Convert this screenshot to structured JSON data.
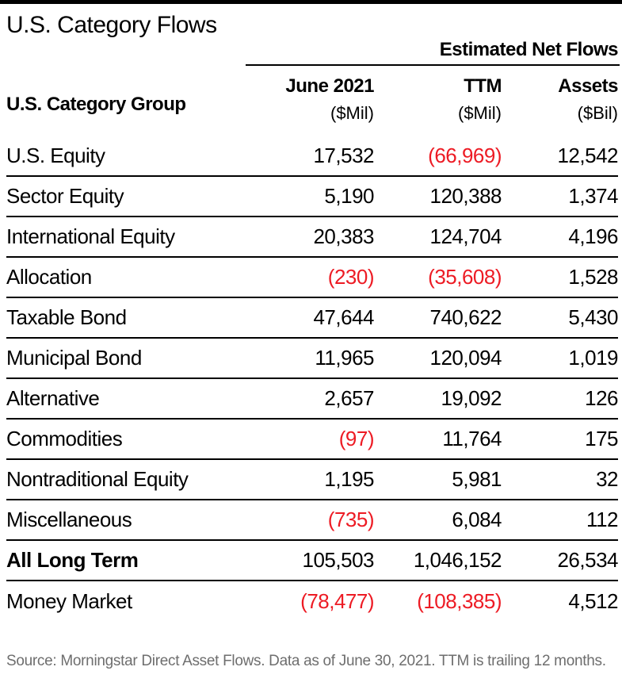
{
  "page": {
    "title": "U.S. Category Flows"
  },
  "table": {
    "group_header": "Estimated Net Flows",
    "columns": {
      "label": "U.S. Category Group",
      "june": {
        "label": "June 2021",
        "unit": "($Mil)"
      },
      "ttm": {
        "label": "TTM",
        "unit": "($Mil)"
      },
      "assets": {
        "label": "Assets",
        "unit": "($Bil)"
      }
    },
    "rows": [
      {
        "label": "U.S. Equity",
        "june": "17,532",
        "ttm": "(66,969)",
        "assets": "12,542",
        "emphasis": false
      },
      {
        "label": "Sector Equity",
        "june": "5,190",
        "ttm": "120,388",
        "assets": "1,374",
        "emphasis": false
      },
      {
        "label": "International Equity",
        "june": "20,383",
        "ttm": "124,704",
        "assets": "4,196",
        "emphasis": false
      },
      {
        "label": "Allocation",
        "june": "(230)",
        "ttm": "(35,608)",
        "assets": "1,528",
        "emphasis": false
      },
      {
        "label": "Taxable Bond",
        "june": "47,644",
        "ttm": "740,622",
        "assets": "5,430",
        "emphasis": false
      },
      {
        "label": "Municipal Bond",
        "june": "11,965",
        "ttm": "120,094",
        "assets": "1,019",
        "emphasis": false
      },
      {
        "label": "Alternative",
        "june": "2,657",
        "ttm": "19,092",
        "assets": "126",
        "emphasis": false
      },
      {
        "label": "Commodities",
        "june": "(97)",
        "ttm": "11,764",
        "assets": "175",
        "emphasis": false
      },
      {
        "label": "Nontraditional Equity",
        "june": "1,195",
        "ttm": "5,981",
        "assets": "32",
        "emphasis": false
      },
      {
        "label": "Miscellaneous",
        "june": "(735)",
        "ttm": "6,084",
        "assets": "112",
        "emphasis": false
      },
      {
        "label": "All Long Term",
        "june": "105,503",
        "ttm": "1,046,152",
        "assets": "26,534",
        "emphasis": true
      },
      {
        "label": "Money Market",
        "june": "(78,477)",
        "ttm": "(108,385)",
        "assets": "4,512",
        "emphasis": false
      }
    ]
  },
  "footer": {
    "source": "Source: Morningstar Direct Asset Flows. Data as of June 30, 2021. TTM is trailing 12 months."
  },
  "colors": {
    "text": "#000000",
    "negative": "#ed1b24",
    "rule": "#000000",
    "top_bar": "#000000",
    "source_text": "#6e6e6e"
  },
  "chart_data": {
    "type": "table",
    "title": "U.S. Category Flows",
    "group_header": "Estimated Net Flows",
    "columns": [
      "U.S. Category Group",
      "June 2021 ($Mil)",
      "TTM ($Mil)",
      "Assets ($Bil)"
    ],
    "rows": [
      [
        "U.S. Equity",
        17532,
        -66969,
        12542
      ],
      [
        "Sector Equity",
        5190,
        120388,
        1374
      ],
      [
        "International Equity",
        20383,
        124704,
        4196
      ],
      [
        "Allocation",
        -230,
        -35608,
        1528
      ],
      [
        "Taxable Bond",
        47644,
        740622,
        5430
      ],
      [
        "Municipal Bond",
        11965,
        120094,
        1019
      ],
      [
        "Alternative",
        2657,
        19092,
        126
      ],
      [
        "Commodities",
        -97,
        11764,
        175
      ],
      [
        "Nontraditional Equity",
        1195,
        5981,
        32
      ],
      [
        "Miscellaneous",
        -735,
        6084,
        112
      ],
      [
        "All Long Term",
        105503,
        1046152,
        26534
      ],
      [
        "Money Market",
        -78477,
        -108385,
        4512
      ]
    ],
    "notes": "Negative values rendered in red within parentheses; All Long Term row label is bold; Money Market row has no bottom rule."
  }
}
